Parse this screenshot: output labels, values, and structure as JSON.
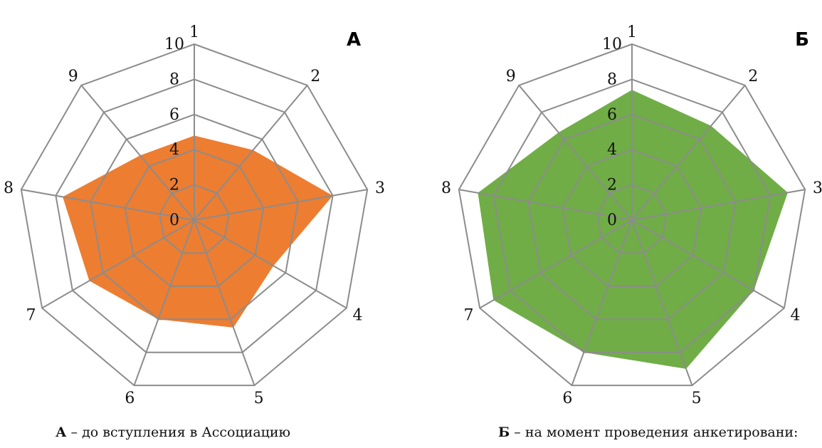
{
  "chart_data": [
    {
      "type": "radar",
      "panel_label": "А",
      "axes": [
        "1",
        "2",
        "3",
        "4",
        "5",
        "6",
        "7",
        "8",
        "9"
      ],
      "radial_ticks": [
        "0",
        "2",
        "4",
        "6",
        "8",
        "10"
      ],
      "rlim": [
        0,
        10
      ],
      "values": [
        4.8,
        5.2,
        8.0,
        5.2,
        6.5,
        6.0,
        6.9,
        7.6,
        4.8
      ],
      "color": "#ED7D31",
      "grid": true,
      "caption_letter": "А",
      "caption_text": " – до вступления в Ассоциацию"
    },
    {
      "type": "radar",
      "panel_label": "Б",
      "axes": [
        "1",
        "2",
        "3",
        "4",
        "5",
        "6",
        "7",
        "8",
        "9"
      ],
      "radial_ticks": [
        "0",
        "2",
        "4",
        "6",
        "8",
        "10"
      ],
      "rlim": [
        0,
        10
      ],
      "values": [
        7.4,
        7.0,
        9.0,
        8.0,
        9.0,
        8.0,
        9.1,
        8.9,
        6.5
      ],
      "color": "#70AD47",
      "grid": true,
      "caption_letter": "Б",
      "caption_text": " – на момент проведения анкетировани:"
    }
  ],
  "colors": {
    "grid": "#8C8C8C",
    "text": "#111111"
  }
}
